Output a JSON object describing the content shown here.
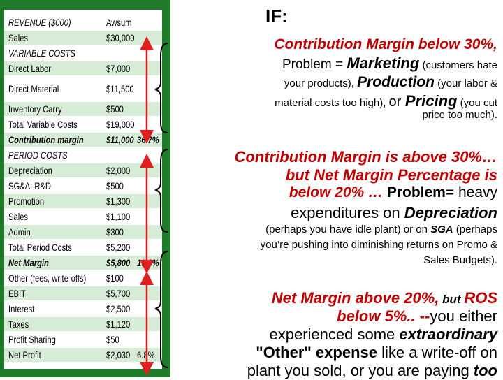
{
  "table": {
    "header": {
      "label": "REVENUE ($000)",
      "value": "Awsum"
    },
    "rows": [
      {
        "label": "Sales",
        "value": "$30,000",
        "pct": "",
        "style": "normal"
      },
      {
        "label": "VARIABLE COSTS",
        "value": "",
        "pct": "",
        "style": "italic"
      },
      {
        "label": "Direct Labor",
        "value": "$7,000",
        "pct": "",
        "style": "normal"
      },
      {
        "label": "Direct Material",
        "value": "$11,500",
        "pct": "",
        "style": "normal"
      },
      {
        "label": "Inventory Carry",
        "value": "$500",
        "pct": "",
        "style": "normal"
      },
      {
        "label": "Total Variable Costs",
        "value": "$19,000",
        "pct": "",
        "style": "normal"
      },
      {
        "label": "Contribution margin",
        "value": "$11,000",
        "pct": "36.7%",
        "style": "bolditalic"
      },
      {
        "label": "PERIOD COSTS",
        "value": "",
        "pct": "",
        "style": "italic"
      },
      {
        "label": "Depreciation",
        "value": "$2,000",
        "pct": "",
        "style": "normal"
      },
      {
        "label": "SG&A:  R&D",
        "value": "$500",
        "pct": "",
        "style": "normal"
      },
      {
        "label": "Promotion",
        "value": "$1,300",
        "pct": "",
        "style": "normal"
      },
      {
        "label": "Sales",
        "value": "$1,100",
        "pct": "",
        "style": "normal"
      },
      {
        "label": "Admin",
        "value": "$300",
        "pct": "",
        "style": "normal"
      },
      {
        "label": "Total Period Costs",
        "value": "$5,200",
        "pct": "",
        "style": "normal"
      },
      {
        "label": "Net Margin",
        "value": "$5,800",
        "pct": "19.3%",
        "style": "bolditalic"
      },
      {
        "label": "Other (fees, write-offs)",
        "value": "$100",
        "pct": "",
        "style": "normal"
      },
      {
        "label": "EBIT",
        "value": "$5,700",
        "pct": "",
        "style": "normal"
      },
      {
        "label": "Interest",
        "value": "$2,500",
        "pct": "",
        "style": "normal"
      },
      {
        "label": "Taxes",
        "value": "$1,120",
        "pct": "",
        "style": "normal"
      },
      {
        "label": "Profit Sharing",
        "value": "$50",
        "pct": "",
        "style": "normal"
      },
      {
        "label": "Net Profit",
        "value": "$2,030",
        "pct": "6.8%",
        "style": "normal"
      }
    ]
  },
  "text": {
    "title": "IF:",
    "s1": {
      "line1": "Contribution Margin below 30%,",
      "line2_a": "Problem = ",
      "line2_b": "Marketing",
      "line2_c": " (customers hate",
      "line3_a": "your products), ",
      "line3_b": "Production",
      "line3_c": " (your labor &",
      "line4_a": "material costs too high), ",
      "line4_b": "or ",
      "line4_c": "Pricing",
      "line4_d": " (you cut",
      "line5": "price too much)."
    },
    "s2": {
      "line1": "Contribution Margin is above 30%…",
      "line2": "but  Net Margin Percentage is",
      "line3_a": "below 20%  …",
      "line3_b": " Problem",
      "line3_c": "=  heavy",
      "line4_a": "expenditures on ",
      "line4_b": "Depreciation",
      "line5_a": "(perhaps you have idle plant) or on ",
      "line5_b": "SGA",
      "line5_c": " (perhaps",
      "line6": "you’re pushing into diminishing returns on  Promo &",
      "line7": "Sales Budgets)."
    },
    "s3": {
      "line1_a": "Net Margin above 20%,",
      "line1_b": " but ",
      "line1_c": "ROS",
      "line2_a": "below 5%.. ",
      "line2_b": " --",
      "line2_c": "you either",
      "line3_a": "experienced some ",
      "line3_b": "extraordinary",
      "line4_a": "\"Other\" expense",
      "line4_b": " like a write-off on",
      "line5_a": "plant you sold, or you are paying ",
      "line5_b": "too"
    }
  },
  "colors": {
    "frame": "#1f7a2a",
    "band": "#d6ecd6",
    "accent": "#c00000",
    "arrow": "#e02020"
  }
}
